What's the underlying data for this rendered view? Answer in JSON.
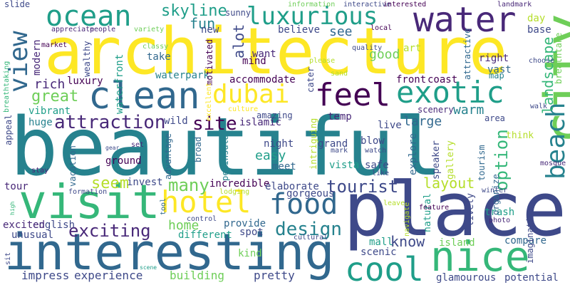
{
  "palette": {
    "dark_purple": "#440154",
    "purple": "#482878",
    "indigo": "#3e4989",
    "blue": "#31688e",
    "teal": "#26828e",
    "green": "#1f9e89",
    "mint": "#35b779",
    "lime": "#6ece58",
    "yellowgreen": "#b5de2b",
    "yellow": "#fde725"
  },
  "words": {
    "beautiful": "beautiful",
    "architecture": "architecture",
    "place": "place",
    "interesting": "interesting",
    "visit": "visit",
    "city": "city",
    "nice": "nice",
    "clean": "clean",
    "water": "water",
    "ocean": "ocean",
    "luxurious": "luxurious",
    "exotic": "exotic",
    "feel": "feel",
    "cool": "cool",
    "hotel": "hotel",
    "food": "food",
    "beach": "beach",
    "dubai": "dubai",
    "view": "view",
    "attraction": "attraction",
    "exciting": "exciting",
    "design": "design",
    "site": "site",
    "tourist": "tourist",
    "many": "many",
    "option": "option",
    "skyline": "skyline",
    "great": "great",
    "seem": "seem",
    "layout": "layout",
    "landscape": "landscape",
    "know": "know",
    "large": "large",
    "rich": "rich",
    "home": "home",
    "fun": "fun",
    "alot": "alot",
    "see": "see",
    "good": "good",
    "easy": "easy",
    "warm": "warm",
    "building": "building",
    "experience": "experience",
    "pretty": "pretty",
    "impress": "impress",
    "scenic": "scenic",
    "island": "island",
    "mall": "mall",
    "incredible": "incredible",
    "elaborate": "elaborate",
    "gorgeous": "gorgeous",
    "vibrant": "vibrant",
    "huge": "huge",
    "wild": "wild",
    "islamic": "islamic",
    "amazing": "amazing",
    "live": "live",
    "blow": "blow",
    "grand": "grand",
    "vista": "vista",
    "explore": "explore",
    "night": "night",
    "meet": "meet",
    "safe": "safe",
    "ground": "ground",
    "invest": "invest",
    "tour": "tour",
    "unusual": "unusual",
    "english": "english",
    "excited": "excited",
    "different": "different",
    "spot": "spot",
    "provide": "provide",
    "kind": "kind",
    "compare": "compare",
    "trash": "trash",
    "potential": "potential",
    "glamourous": "glamourous",
    "natural": "natural",
    "lively": "lively",
    "speaker": "speaker",
    "gallery": "gallery",
    "tourism": "tourism",
    "organize": "organize",
    "think": "think",
    "imaginative": "imaginative",
    "photo": "photo",
    "feature": "feature",
    "navigate": "navigate",
    "leave": "leave",
    "cultural": "cultural",
    "modern": "modern",
    "luxury": "luxury",
    "waterfront": "waterfront",
    "waterpark": "waterpark",
    "take": "take",
    "classy": "classy",
    "wealthy": "wealthy",
    "accommodate": "accommodate",
    "mind": "mind",
    "want": "want",
    "motivated": "motivated",
    "new": "new",
    "sunny": "sunny",
    "believe": "believe",
    "art": "art",
    "quality": "quality",
    "please": "please",
    "local": "local",
    "interactive": "interactive",
    "interested": "interested",
    "information": "information",
    "landmark": "landmark",
    "day": "day",
    "base": "base",
    "right": "right",
    "vast": "vast",
    "map": "map",
    "front": "front",
    "coast": "coast",
    "attractive": "attractive",
    "choose": "choose",
    "breathtake": "breathtake",
    "temp": "temp",
    "scenery": "scenery",
    "intriguing": "intriguing",
    "area": "area",
    "walk": "walk",
    "mosque": "mosque",
    "winter": "winter",
    "like": "like",
    "watch": "watch",
    "mark": "mark",
    "cater": "cater",
    "sand": "sand",
    "culture": "culture",
    "excellent": "excellent",
    "slide": "slide",
    "market": "market",
    "appreciate": "appreciate",
    "people": "people",
    "variety": "variety",
    "breathtaking": "breathtaking",
    "appeal": "appeal",
    "vacation": "vacation",
    "stay": "stay",
    "gear": "gear",
    "set": "set",
    "formation": "formation",
    "advantage": "advantage",
    "broad": "broad",
    "peninsula": "peninsula",
    "lodging": "lodging",
    "tool": "tool",
    "control": "control",
    "high": "high",
    "sit": "sit",
    "scene": "scene"
  }
}
